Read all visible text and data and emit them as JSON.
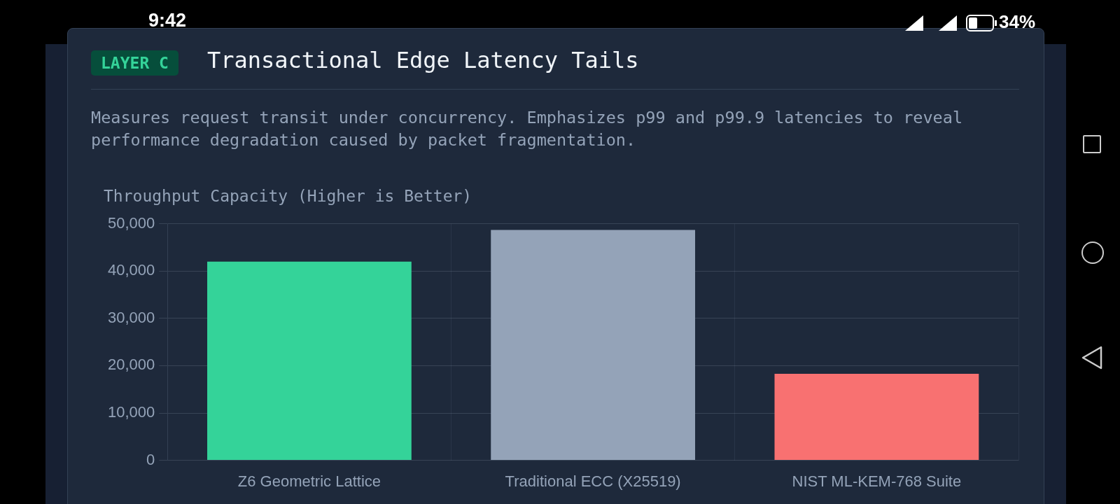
{
  "chart_data": {
    "type": "bar",
    "title": "Transactional Edge Latency Tails",
    "subtitle": "Measures request transit under concurrency. Emphasizes p99 and p99.9 latencies to reveal performance degradation caused by packet fragmentation.",
    "ylabel": "Throughput Capacity (Higher is Better)",
    "annotations": [
      "LAYER C",
      "9:42",
      "34%"
    ],
    "categories": [
      "Z6 Geometric Lattice",
      "Traditional ECC (X25519)",
      "NIST ML-KEM-768 Suite"
    ],
    "values": [
      42000,
      48700,
      18300
    ],
    "colors": [
      "#34d399",
      "#94a3b8",
      "#f87171"
    ],
    "ylim": [
      0,
      50000
    ],
    "yticks": [
      0,
      {
        "value": 10000,
        "label": "10,000"
      },
      {
        "value": 20000,
        "label": "20,000"
      },
      {
        "value": 30000,
        "label": "30,000"
      },
      {
        "value": 40000,
        "label": "40,000"
      },
      {
        "value": 50000,
        "label": "50,000"
      }
    ],
    "grid": true,
    "legend": false
  }
}
